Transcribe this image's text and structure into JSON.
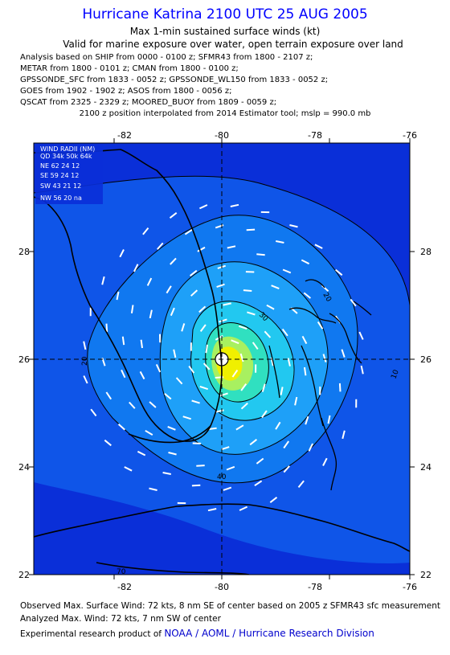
{
  "header": {
    "title": "Hurricane Katrina 2100 UTC 25 AUG 2005",
    "subtitle": "Max 1-min sustained surface winds (kt)",
    "validity": "Valid for marine exposure over water, open terrain exposure over land",
    "analysis_lines": [
      "Analysis based on  SHIP from 0000 - 0100 z;  SFMR43 from 1800 - 2107 z;",
      "METAR from 1800 - 0101 z;  CMAN from 1800 - 0100 z;",
      "GPSSONDE_SFC from 1833 - 0052 z;  GPSSONDE_WL150 from 1833 - 0052 z;",
      "GOES from 1902 - 1902 z;  ASOS from 1800 - 0056 z;",
      "QSCAT from 2325 - 2329 z;  MOORED_BUOY from 1809 - 0059 z;"
    ],
    "position_note": "2100 z position interpolated from 2014 Estimator tool; mslp = 990.0 mb"
  },
  "map": {
    "x_ticks": [
      "-82",
      "-80",
      "-78",
      "-76"
    ],
    "y_ticks": [
      "28",
      "26",
      "24",
      "22"
    ],
    "center_lon": -80,
    "center_lat": 26,
    "contour_labels": [
      "20",
      "30",
      "20",
      "40",
      "10",
      "70"
    ],
    "colors": {
      "outer": "#0a2fd8",
      "band1": "#0f55e8",
      "band2": "#1078f0",
      "band3": "#1ea0f8",
      "band4": "#22c8f0",
      "band5": "#30e0c0",
      "band6": "#a8f060",
      "band7": "#f0f000",
      "land_line": "#000000",
      "wind_barb": "#ffffff"
    }
  },
  "wind_radii": {
    "title": "WIND RADII (NM)",
    "header": "QD  34k  50k  64k",
    "rows": [
      "NE  62   24   12",
      "SE  59   24   12",
      "SW  43   21   12",
      "NW  56   20   na"
    ]
  },
  "footer": {
    "observed": "Observed Max. Surface Wind: 72 kts, 8 nm SE of center based on 2005 z SFMR43 sfc measurement",
    "analyzed": "Analyzed Max. Wind: 72 kts, 7 nm SW of center",
    "product_prefix": "Experimental research product of",
    "org": "NOAA / AOML / Hurricane Research Division"
  }
}
